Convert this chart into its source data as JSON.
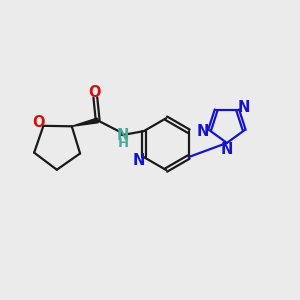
{
  "background_color": "#ebebeb",
  "bond_color": "#1a1a1a",
  "nitrogen_color": "#1414cc",
  "oxygen_color": "#cc1414",
  "nh_color": "#4aaa99",
  "bond_width": 1.6,
  "font_size": 10.5,
  "figsize": [
    3.0,
    3.0
  ],
  "dpi": 100,
  "xlim": [
    0,
    10
  ],
  "ylim": [
    0,
    10
  ]
}
